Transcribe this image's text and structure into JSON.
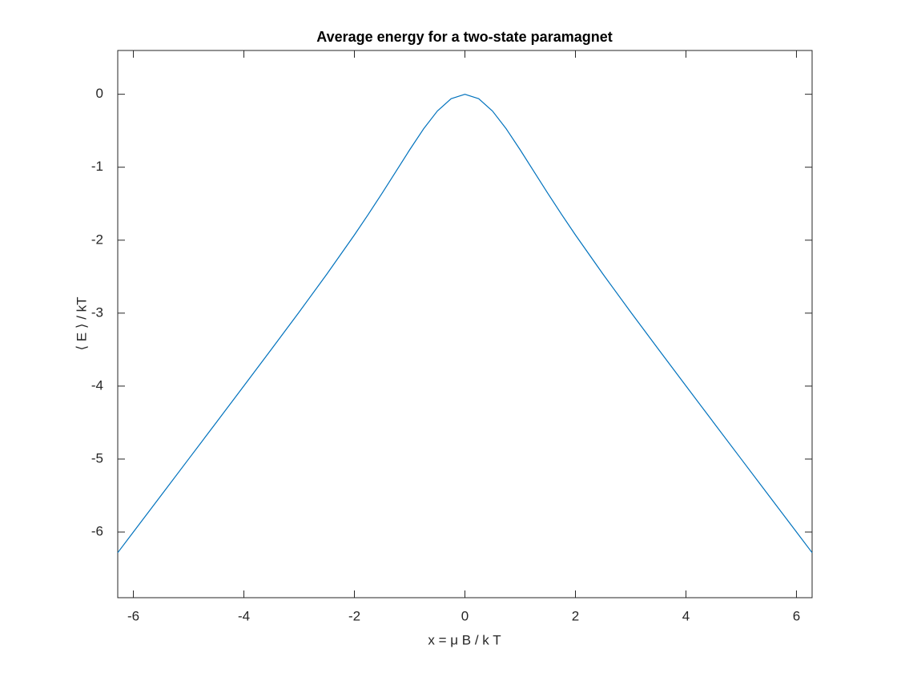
{
  "chart_data": {
    "type": "line",
    "title": "Average energy for a two-state paramagnet",
    "x_label": "x = μ B / k T",
    "y_label": "⟨ E ⟩ / kT",
    "x": [
      -6.2832,
      -6,
      -5.5,
      -5,
      -4.5,
      -4,
      -3.5,
      -3,
      -2.5,
      -2,
      -1.75,
      -1.5,
      -1.25,
      -1,
      -0.75,
      -0.5,
      -0.25,
      0,
      0.25,
      0.5,
      0.75,
      1,
      1.25,
      1.5,
      1.75,
      2,
      2.5,
      3,
      3.5,
      4,
      4.5,
      5,
      5.5,
      6,
      6.2832
    ],
    "series": [
      {
        "color": "#0072bd",
        "values": [
          -6.2831,
          -5.9999,
          -5.4998,
          -4.9995,
          -4.4989,
          -3.9973,
          -3.4936,
          -2.9852,
          -2.4665,
          -1.9281,
          -1.6474,
          -1.3577,
          -1.0604,
          -0.7616,
          -0.4764,
          -0.2311,
          -0.0612,
          0,
          -0.0612,
          -0.2311,
          -0.4764,
          -0.7616,
          -1.0604,
          -1.3577,
          -1.6474,
          -1.9281,
          -2.4665,
          -2.9852,
          -3.4936,
          -3.9973,
          -4.4989,
          -4.9995,
          -5.4998,
          -5.9999,
          -6.2831
        ]
      }
    ],
    "xlim": [
      -6.2832,
      6.2832
    ],
    "xticks": [
      -6,
      -4,
      -2,
      0,
      2,
      4,
      6
    ],
    "ylim": [
      -6.9,
      0.6
    ],
    "yticks": [
      -6,
      -5,
      -4,
      -3,
      -2,
      -1,
      0
    ]
  }
}
